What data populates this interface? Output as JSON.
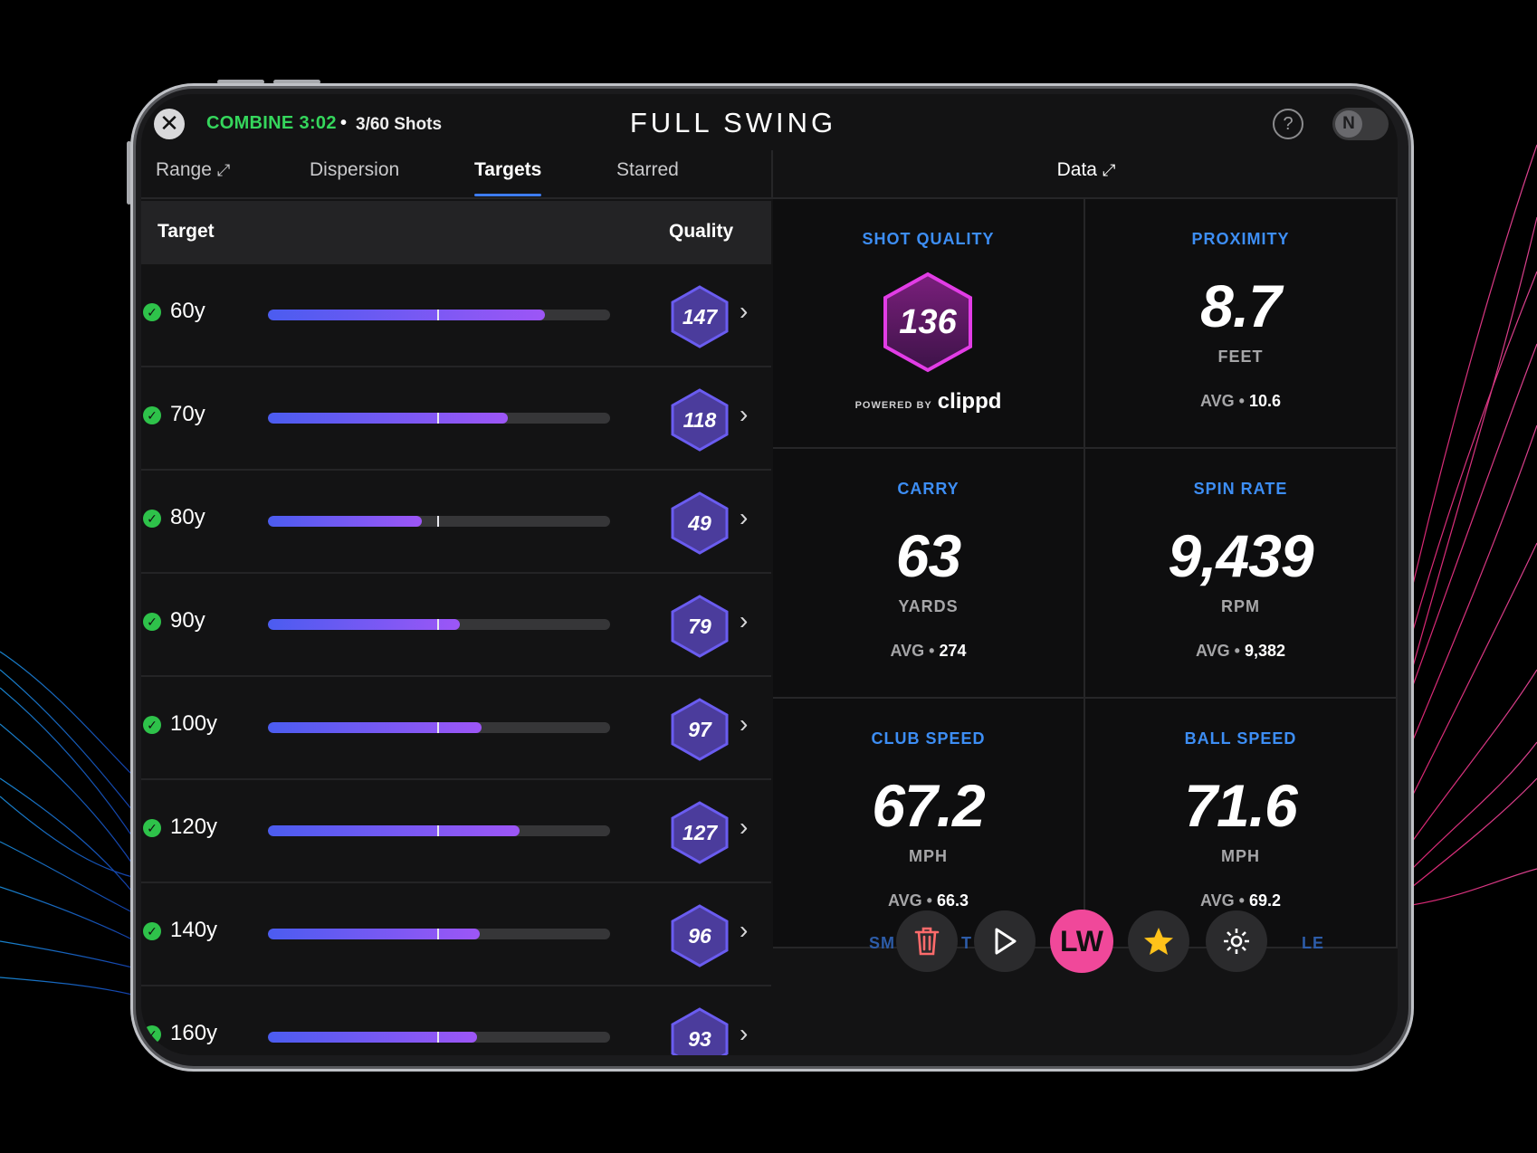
{
  "header": {
    "close_label": "✕",
    "mode": "COMBINE",
    "timer": "3:02",
    "separator": "•",
    "shots": "3/60 Shots",
    "logo": "FULL SWING",
    "help_label": "?",
    "toggle_label": "N"
  },
  "tabs": [
    {
      "label": "Range",
      "active": false,
      "expandable": true
    },
    {
      "label": "Dispersion",
      "active": false
    },
    {
      "label": "Targets",
      "active": true
    },
    {
      "label": "Starred",
      "active": false
    }
  ],
  "data_tab": {
    "label": "Data"
  },
  "table": {
    "headers": {
      "target": "Target",
      "quality": "Quality"
    },
    "rows": [
      {
        "target": "60y",
        "quality": "147",
        "fill": 0.81
      },
      {
        "target": "70y",
        "quality": "118",
        "fill": 0.7
      },
      {
        "target": "80y",
        "quality": "49",
        "fill": 0.45
      },
      {
        "target": "90y",
        "quality": "79",
        "fill": 0.56
      },
      {
        "target": "100y",
        "quality": "97",
        "fill": 0.625
      },
      {
        "target": "120y",
        "quality": "127",
        "fill": 0.735
      },
      {
        "target": "140y",
        "quality": "96",
        "fill": 0.62
      },
      {
        "target": "160y",
        "quality": "93",
        "fill": 0.61
      }
    ]
  },
  "metrics": {
    "shot_quality": {
      "label": "SHOT QUALITY",
      "value": "136",
      "powered_by": "POWERED BY",
      "brand": "clippd"
    },
    "proximity": {
      "label": "PROXIMITY",
      "value": "8.7",
      "unit": "FEET",
      "avg_label": "AVG",
      "avg": "10.6"
    },
    "carry": {
      "label": "CARRY",
      "value": "63",
      "unit": "YARDS",
      "avg_label": "AVG",
      "avg": "274"
    },
    "spin_rate": {
      "label": "SPIN RATE",
      "value": "9,439",
      "unit": "RPM",
      "avg_label": "AVG",
      "avg": "9,382"
    },
    "club_speed": {
      "label": "CLUB SPEED",
      "value": "67.2",
      "unit": "MPH",
      "avg_label": "AVG",
      "avg": "66.3"
    },
    "ball_speed": {
      "label": "BALL SPEED",
      "value": "71.6",
      "unit": "MPH",
      "avg_label": "AVG",
      "avg": "69.2"
    },
    "partial_left": "SM",
    "partial_mid": "T",
    "partial_right": "U",
    "partial_end": "LE"
  },
  "toolbar": {
    "club": "LW"
  },
  "colors": {
    "accent_blue": "#3d8ef5",
    "combine_green": "#35d65c",
    "club_pink": "#f0489a",
    "bar_start": "#4b5cf0",
    "bar_end": "#9d56f6",
    "hex_fill": "#4b3c9c",
    "hex_stroke": "#6a5cf0"
  }
}
